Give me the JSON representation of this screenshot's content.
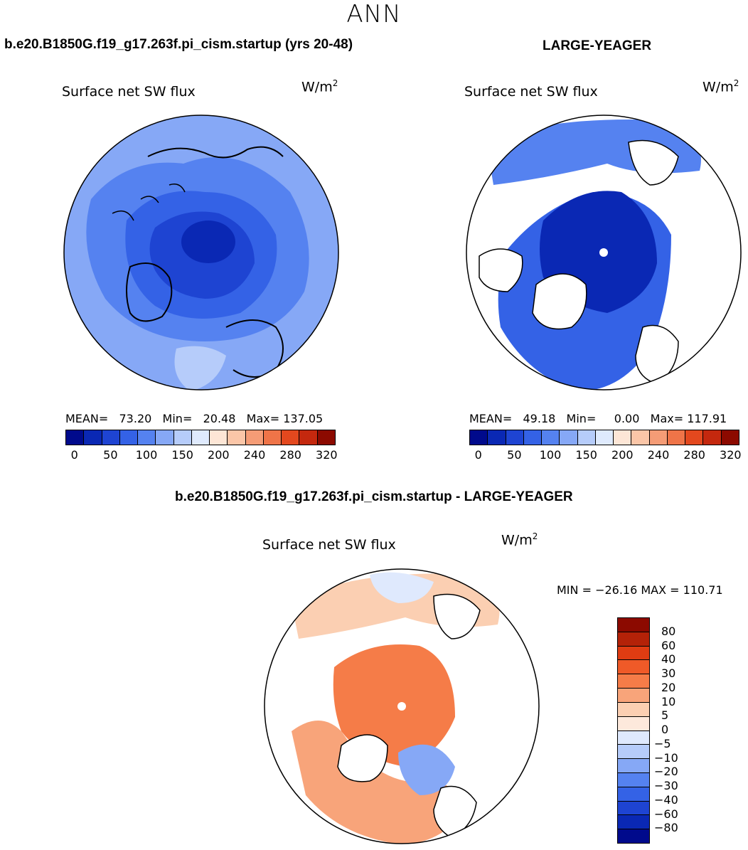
{
  "main_title": "ANN",
  "panel_left": {
    "case_title": "b.e20.B1850G.f19_g17.263f.pi_cism.startup (yrs 20-48)",
    "plot_title": "Surface net SW flux",
    "unit_base": "W/m",
    "unit_exp": "2",
    "stats": "MEAN=   73.20   Min=   20.48   Max= 137.05",
    "colorbar_labels": [
      "0",
      "50",
      "100",
      "150",
      "200",
      "240",
      "280",
      "320"
    ]
  },
  "panel_right": {
    "case_title": "LARGE-YEAGER",
    "plot_title": "Surface net SW flux",
    "unit_base": "W/m",
    "unit_exp": "2",
    "stats": "MEAN=   49.18   Min=     0.00   Max= 117.91",
    "colorbar_labels": [
      "0",
      "50",
      "100",
      "150",
      "200",
      "240",
      "280",
      "320"
    ]
  },
  "panel_diff": {
    "case_title": "b.e20.B1850G.f19_g17.263f.pi_cism.startup - LARGE-YEAGER",
    "plot_title": "Surface net SW flux",
    "unit_base": "W/m",
    "unit_exp": "2",
    "minmax": "MIN = −26.16 MAX = 110.71",
    "colorbar_labels": [
      "80",
      "60",
      "40",
      "30",
      "20",
      "10",
      "5",
      "0",
      "−5",
      "−10",
      "−20",
      "−30",
      "−40",
      "−60",
      "−80"
    ]
  },
  "colors": {
    "abs_scale": [
      "#000a8c",
      "#0a28b4",
      "#1e44d2",
      "#3462e6",
      "#5582f0",
      "#86a8f6",
      "#b6ccfa",
      "#dfeafd",
      "#fde6d6",
      "#fbc6a8",
      "#f59c76",
      "#ef7448",
      "#e3481e",
      "#c4280e",
      "#8c0a00"
    ],
    "diff_scale": [
      "#8c0a00",
      "#b42208",
      "#df3c12",
      "#ef5a28",
      "#f57c48",
      "#f8a47a",
      "#fbcfb2",
      "#fde9dc",
      "#dfe9fd",
      "#b6ccfa",
      "#86a8f6",
      "#5582f0",
      "#3462e6",
      "#1e44d2",
      "#0a28b4",
      "#000a8c"
    ]
  }
}
